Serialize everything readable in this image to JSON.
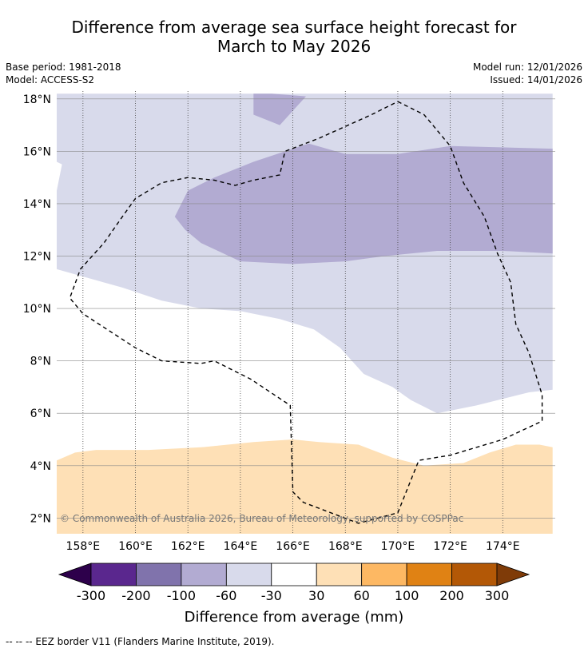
{
  "header": {
    "title_line1": "Difference from average sea surface height forecast for",
    "title_line2": "March to May 2026",
    "base_period": "Base period: 1981-2018",
    "model": "Model: ACCESS-S2",
    "model_run": "Model run: 12/01/2026",
    "issued": "Issued: 14/01/2026"
  },
  "map": {
    "copyright": "© Commonwealth of Australia 2026, Bureau of Meteorology, supported by COSPPac"
  },
  "footer": {
    "eez_note": "--  --  -- EEZ border V11 (Flanders Marine Institute, 2019)."
  },
  "colors": {
    "purple_300": "#2d004b",
    "purple_200": "#5a278e",
    "purple_100": "#8073ac",
    "purple_60": "#b2abd2",
    "purple_30": "#d8daeb",
    "neutral": "#ffffff",
    "orange_30": "#fee0b6",
    "orange_60": "#fdb863",
    "orange_100": "#e08214",
    "orange_200": "#b35806",
    "orange_300": "#7f3b08"
  },
  "chart_data": {
    "type": "heatmap",
    "title": "Difference from average sea surface height forecast for March to May 2026",
    "xlabel": "",
    "ylabel": "",
    "xlim": [
      157.0,
      176.0
    ],
    "ylim": [
      1.4,
      18.3
    ],
    "x_ticks": [
      158,
      160,
      162,
      164,
      166,
      168,
      170,
      172,
      174
    ],
    "x_tick_labels": [
      "158°E",
      "160°E",
      "162°E",
      "164°E",
      "166°E",
      "168°E",
      "170°E",
      "172°E",
      "174°E"
    ],
    "y_ticks": [
      2,
      4,
      6,
      8,
      10,
      12,
      14,
      16,
      18
    ],
    "y_tick_labels": [
      "2°N",
      "4°N",
      "6°N",
      "8°N",
      "10°N",
      "12°N",
      "14°N",
      "16°N",
      "18°N"
    ],
    "colorbar": {
      "label": "Difference from average (mm)",
      "tick_labels": [
        "-300",
        "-200",
        "-100",
        "-60",
        "-30",
        "30",
        "60",
        "100",
        "200",
        "300"
      ],
      "bins": [
        {
          "from": -300,
          "to": -200,
          "color": "#5a278e"
        },
        {
          "from": -200,
          "to": -100,
          "color": "#8073ac"
        },
        {
          "from": -100,
          "to": -60,
          "color": "#b2abd2"
        },
        {
          "from": -60,
          "to": -30,
          "color": "#d8daeb"
        },
        {
          "from": -30,
          "to": 30,
          "color": "#ffffff"
        },
        {
          "from": 30,
          "to": 60,
          "color": "#fee0b6"
        },
        {
          "from": 60,
          "to": 100,
          "color": "#fdb863"
        },
        {
          "from": 100,
          "to": 200,
          "color": "#e08214"
        },
        {
          "from": 200,
          "to": 300,
          "color": "#b35806"
        }
      ],
      "extend_low_color": "#2d004b",
      "extend_high_color": "#7f3b08"
    },
    "regions": [
      {
        "category": "-60 to -30",
        "color": "#d8daeb",
        "polygon": [
          [
            157.0,
            18.2
          ],
          [
            175.9,
            18.2
          ],
          [
            175.9,
            6.9
          ],
          [
            175,
            6.8
          ],
          [
            173,
            6.3
          ],
          [
            171.5,
            6.0
          ],
          [
            170.5,
            6.5
          ],
          [
            169.8,
            7.0
          ],
          [
            168.7,
            7.5
          ],
          [
            167.8,
            8.5
          ],
          [
            166.8,
            9.2
          ],
          [
            165.5,
            9.6
          ],
          [
            164,
            9.9
          ],
          [
            162.5,
            10.0
          ],
          [
            161,
            10.3
          ],
          [
            159.5,
            10.8
          ],
          [
            157.0,
            11.5
          ],
          [
            157.0,
            14.5
          ],
          [
            157.2,
            15.5
          ],
          [
            157.0,
            15.6
          ]
        ]
      },
      {
        "category": "-100 to -60",
        "color": "#b2abd2",
        "polygon": [
          [
            161.5,
            13.5
          ],
          [
            162,
            14.5
          ],
          [
            163,
            15.0
          ],
          [
            164.5,
            15.6
          ],
          [
            166.6,
            16.3
          ],
          [
            168,
            15.9
          ],
          [
            170,
            15.9
          ],
          [
            172,
            16.2
          ],
          [
            175.9,
            16.1
          ],
          [
            175.9,
            12.1
          ],
          [
            174,
            12.2
          ],
          [
            171.5,
            12.2
          ],
          [
            169.5,
            12.0
          ],
          [
            168,
            11.8
          ],
          [
            166,
            11.7
          ],
          [
            164,
            11.8
          ],
          [
            162.5,
            12.5
          ],
          [
            161.9,
            13.0
          ]
        ]
      },
      {
        "category": "-100 to -60",
        "color": "#b2abd2",
        "polygon": [
          [
            164.5,
            18.2
          ],
          [
            165.2,
            18.2
          ],
          [
            166.5,
            18.1
          ],
          [
            165.5,
            17.0
          ],
          [
            164.5,
            17.4
          ]
        ]
      },
      {
        "category": "30 to 60",
        "color": "#fee0b6",
        "polygon": [
          [
            157.0,
            4.2
          ],
          [
            157.7,
            4.5
          ],
          [
            158.5,
            4.6
          ],
          [
            160.5,
            4.6
          ],
          [
            162.5,
            4.7
          ],
          [
            164.5,
            4.9
          ],
          [
            166,
            5.0
          ],
          [
            167,
            4.9
          ],
          [
            168.5,
            4.8
          ],
          [
            169.8,
            4.3
          ],
          [
            171,
            4.0
          ],
          [
            172.5,
            4.1
          ],
          [
            173.5,
            4.5
          ],
          [
            174.5,
            4.8
          ],
          [
            175.4,
            4.8
          ],
          [
            175.9,
            4.7
          ],
          [
            175.9,
            1.4
          ],
          [
            157.0,
            1.4
          ]
        ]
      }
    ],
    "eez_border": [
      [
        170.0,
        17.9
      ],
      [
        171,
        17.4
      ],
      [
        172,
        16.2
      ],
      [
        172.5,
        14.8
      ],
      [
        173.3,
        13.5
      ],
      [
        173.8,
        12.1
      ],
      [
        174.3,
        11.0
      ],
      [
        174.5,
        9.4
      ],
      [
        175.0,
        8.3
      ],
      [
        175.5,
        6.7
      ],
      [
        175.5,
        5.7
      ],
      [
        174,
        5.0
      ],
      [
        172,
        4.4
      ],
      [
        170.8,
        4.2
      ],
      [
        170.0,
        2.2
      ],
      [
        168.5,
        1.8
      ],
      [
        166.4,
        2.6
      ],
      [
        166.0,
        3.0
      ],
      [
        165.9,
        6.3
      ],
      [
        164.4,
        7.3
      ],
      [
        163,
        8.0
      ],
      [
        162.5,
        7.9
      ],
      [
        161,
        8.0
      ],
      [
        160,
        8.5
      ],
      [
        158,
        9.8
      ],
      [
        157.5,
        10.4
      ],
      [
        157.9,
        11.5
      ],
      [
        158.8,
        12.5
      ],
      [
        159.5,
        13.5
      ],
      [
        160.0,
        14.2
      ],
      [
        161,
        14.8
      ],
      [
        162,
        15.0
      ],
      [
        163,
        14.9
      ],
      [
        163.8,
        14.7
      ],
      [
        164.5,
        14.9
      ],
      [
        165.5,
        15.1
      ],
      [
        165.7,
        16.0
      ],
      [
        167,
        16.5
      ],
      [
        169,
        17.4
      ],
      [
        170.0,
        17.9
      ]
    ]
  }
}
